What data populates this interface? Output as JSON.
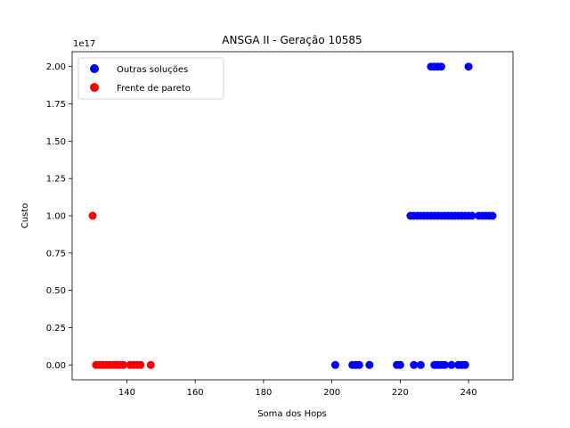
{
  "chart_data": {
    "type": "scatter",
    "title": "ANSGA II - Geração 10585",
    "xlabel": "Soma dos Hops",
    "ylabel": "Custo",
    "y_offset_text": "1e17",
    "xlim": [
      124,
      253
    ],
    "ylim": [
      -0.1,
      2.1
    ],
    "x_ticks": [
      140,
      160,
      180,
      200,
      220,
      240
    ],
    "y_ticks": [
      0.0,
      0.25,
      0.5,
      0.75,
      1.0,
      1.25,
      1.5,
      1.75,
      2.0
    ],
    "y_tick_labels": [
      "0.00",
      "0.25",
      "0.50",
      "0.75",
      "1.00",
      "1.25",
      "1.50",
      "1.75",
      "2.00"
    ],
    "grid": false,
    "legend_position": "top-left",
    "series": [
      {
        "name": "Outras soluções",
        "color": "#0000ff",
        "x": [
          229,
          230,
          231,
          232,
          240,
          223,
          224,
          225,
          226,
          227,
          228,
          229,
          230,
          231,
          232,
          233,
          234,
          235,
          236,
          237,
          238,
          239,
          240,
          241,
          243,
          244,
          245,
          246,
          247,
          201,
          206,
          207,
          208,
          211,
          219,
          220,
          224,
          226,
          230,
          231,
          232,
          233,
          235,
          237,
          238,
          239
        ],
        "y": [
          2,
          2,
          2,
          2,
          2,
          1,
          1,
          1,
          1,
          1,
          1,
          1,
          1,
          1,
          1,
          1,
          1,
          1,
          1,
          1,
          1,
          1,
          1,
          1,
          1,
          1,
          1,
          1,
          1,
          0,
          0,
          0,
          0,
          0,
          0,
          0,
          0,
          0,
          0,
          0,
          0,
          0,
          0,
          0,
          0,
          0
        ]
      },
      {
        "name": "Frente de pareto",
        "color": "#ff0000",
        "x": [
          130,
          131,
          132,
          133,
          134,
          135,
          136,
          137,
          138,
          139,
          141,
          142,
          143,
          144,
          147
        ],
        "y": [
          1,
          0,
          0,
          0,
          0,
          0,
          0,
          0,
          0,
          0,
          0,
          0,
          0,
          0,
          0
        ]
      }
    ]
  }
}
